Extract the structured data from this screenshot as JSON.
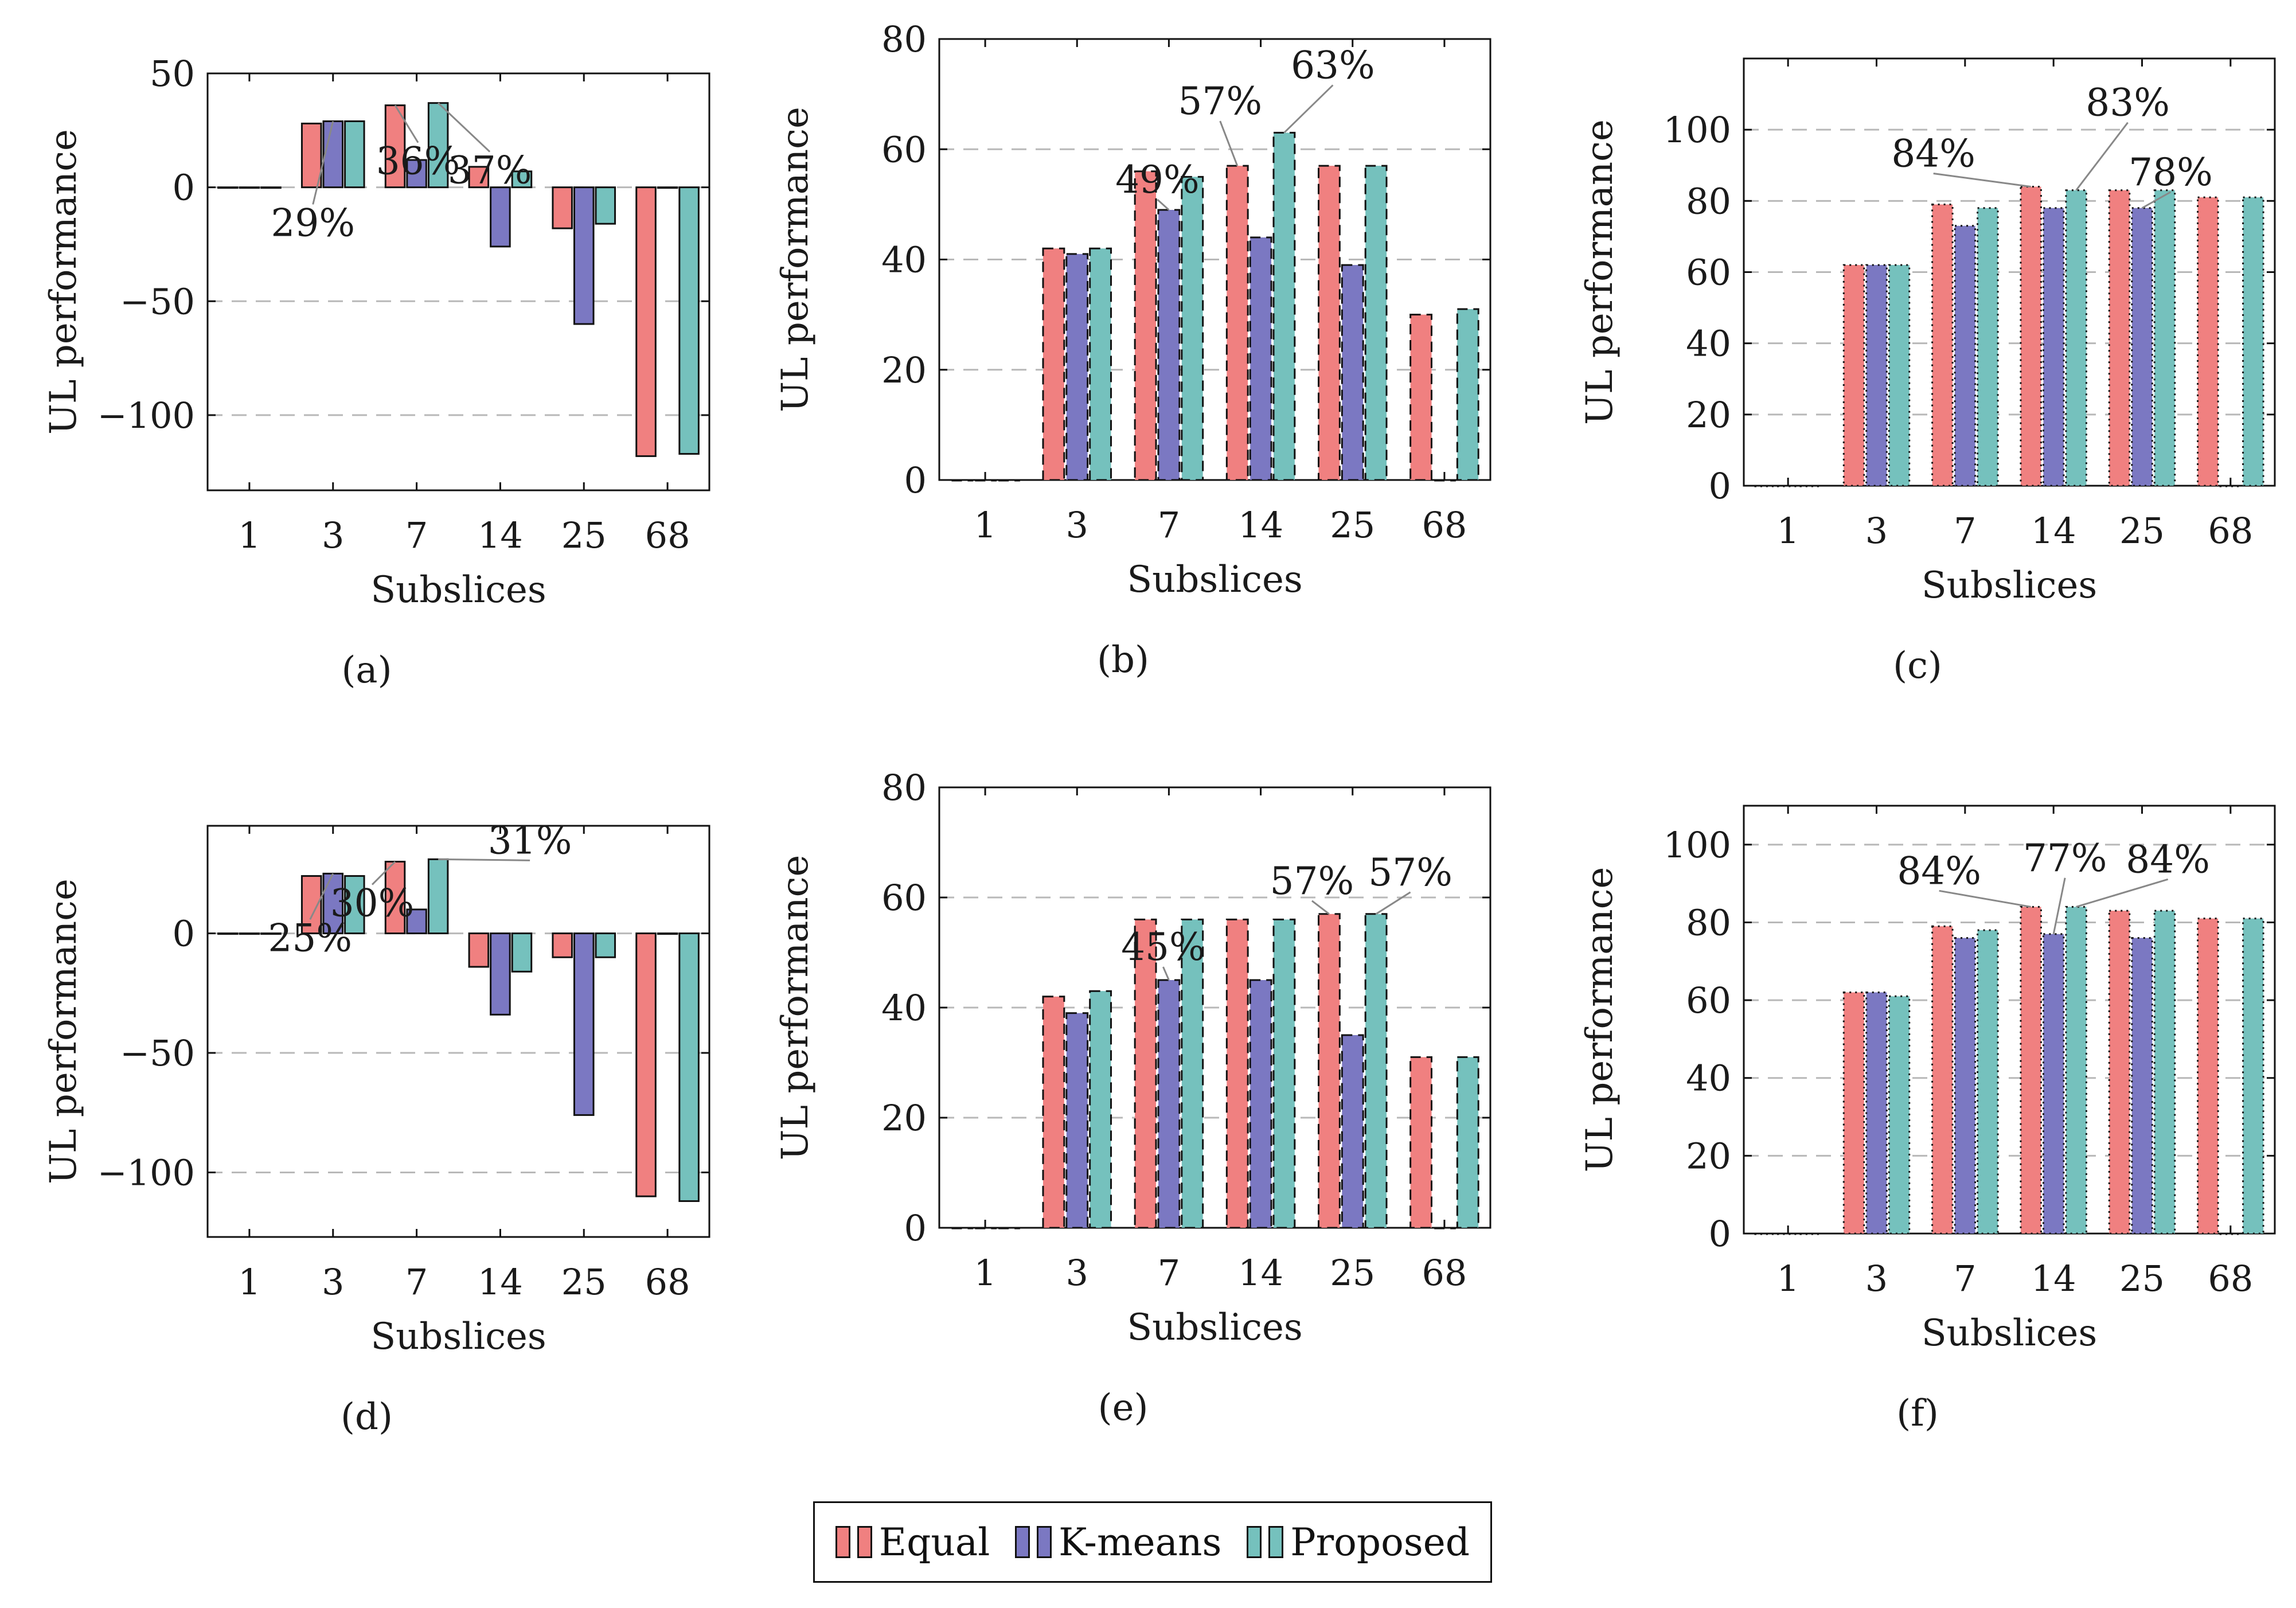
{
  "colors": {
    "equal": "#f08080",
    "kmeans": "#7b78c2",
    "proposed": "#75c1bd"
  },
  "legend": [
    {
      "key": "equal",
      "label": "Equal"
    },
    {
      "key": "kmeans",
      "label": "K-means"
    },
    {
      "key": "proposed",
      "label": "Proposed"
    }
  ],
  "chart_data": [
    {
      "id": "a",
      "caption": "(a)",
      "type": "bar",
      "title": "",
      "xlabel": "Subslices",
      "ylabel": "UL performance",
      "ylim": [
        -133,
        50
      ],
      "yticks": [
        50,
        0,
        -50,
        -100
      ],
      "categories": [
        "1",
        "3",
        "7",
        "14",
        "25",
        "68"
      ],
      "series": [
        {
          "name": "Equal",
          "values": [
            0,
            28,
            36,
            9,
            -18,
            -118
          ]
        },
        {
          "name": "K-means",
          "values": [
            0,
            29,
            12,
            -26,
            -60,
            0
          ]
        },
        {
          "name": "Proposed",
          "values": [
            0,
            29,
            37,
            7,
            -16,
            -117
          ]
        }
      ],
      "annotations": [
        {
          "text": "29%",
          "category": "3",
          "series": "K-means"
        },
        {
          "text": "36%",
          "category": "7",
          "series": "Equal"
        },
        {
          "text": "37%",
          "category": "7",
          "series": "Proposed"
        }
      ]
    },
    {
      "id": "b",
      "caption": "(b)",
      "type": "bar",
      "title": "",
      "xlabel": "Subslices",
      "ylabel": "UL performance",
      "ylim": [
        0,
        80
      ],
      "yticks": [
        0,
        20,
        40,
        60,
        80
      ],
      "categories": [
        "1",
        "3",
        "7",
        "14",
        "25",
        "68"
      ],
      "series": [
        {
          "name": "Equal",
          "values": [
            0,
            42,
            56,
            57,
            57,
            30
          ]
        },
        {
          "name": "K-means",
          "values": [
            0,
            41,
            49,
            44,
            39,
            0
          ]
        },
        {
          "name": "Proposed",
          "values": [
            0,
            42,
            55,
            63,
            57,
            31
          ]
        }
      ],
      "annotations": [
        {
          "text": "49%",
          "category": "7",
          "series": "K-means"
        },
        {
          "text": "57%",
          "category": "14",
          "series": "Equal"
        },
        {
          "text": "63%",
          "category": "14",
          "series": "Proposed"
        }
      ]
    },
    {
      "id": "c",
      "caption": "(c)",
      "type": "bar",
      "title": "",
      "xlabel": "Subslices",
      "ylabel": "UL performance",
      "ylim": [
        0,
        120
      ],
      "yticks": [
        0,
        20,
        40,
        60,
        80,
        100
      ],
      "categories": [
        "1",
        "3",
        "7",
        "14",
        "25",
        "68"
      ],
      "series": [
        {
          "name": "Equal",
          "values": [
            0,
            62,
            79,
            84,
            83,
            81
          ]
        },
        {
          "name": "K-means",
          "values": [
            0,
            62,
            73,
            78,
            78,
            0
          ]
        },
        {
          "name": "Proposed",
          "values": [
            0,
            62,
            78,
            83,
            83,
            81
          ]
        }
      ],
      "annotations": [
        {
          "text": "84%",
          "category": "14",
          "series": "Equal"
        },
        {
          "text": "83%",
          "category": "14",
          "series": "Proposed"
        },
        {
          "text": "78%",
          "category": "25",
          "series": "K-means"
        }
      ]
    },
    {
      "id": "d",
      "caption": "(d)",
      "type": "bar",
      "title": "",
      "xlabel": "Subslices",
      "ylabel": "UL performance",
      "ylim": [
        -127,
        45
      ],
      "yticks": [
        0,
        -50,
        -100
      ],
      "categories": [
        "1",
        "3",
        "7",
        "14",
        "25",
        "68"
      ],
      "series": [
        {
          "name": "Equal",
          "values": [
            0,
            24,
            30,
            -14,
            -10,
            -110
          ]
        },
        {
          "name": "K-means",
          "values": [
            0,
            25,
            10,
            -34,
            -76,
            0
          ]
        },
        {
          "name": "Proposed",
          "values": [
            0,
            24,
            31,
            -16,
            -10,
            -112
          ]
        }
      ],
      "annotations": [
        {
          "text": "25%",
          "category": "3",
          "series": "K-means"
        },
        {
          "text": "30%",
          "category": "7",
          "series": "Equal"
        },
        {
          "text": "31%",
          "category": "7",
          "series": "Proposed"
        }
      ]
    },
    {
      "id": "e",
      "caption": "(e)",
      "type": "bar",
      "title": "",
      "xlabel": "Subslices",
      "ylabel": "UL performance",
      "ylim": [
        0,
        80
      ],
      "yticks": [
        0,
        20,
        40,
        60,
        80
      ],
      "categories": [
        "1",
        "3",
        "7",
        "14",
        "25",
        "68"
      ],
      "series": [
        {
          "name": "Equal",
          "values": [
            0,
            42,
            56,
            56,
            57,
            31
          ]
        },
        {
          "name": "K-means",
          "values": [
            0,
            39,
            45,
            45,
            35,
            0
          ]
        },
        {
          "name": "Proposed",
          "values": [
            0,
            43,
            56,
            56,
            57,
            31
          ]
        }
      ],
      "annotations": [
        {
          "text": "45%",
          "category": "7",
          "series": "K-means"
        },
        {
          "text": "57%",
          "category": "25",
          "series": "Equal"
        },
        {
          "text": "57%",
          "category": "25",
          "series": "Proposed"
        }
      ]
    },
    {
      "id": "f",
      "caption": "(f)",
      "type": "bar",
      "title": "",
      "xlabel": "Subslices",
      "ylabel": "UL performance",
      "ylim": [
        0,
        110
      ],
      "yticks": [
        0,
        20,
        40,
        60,
        80,
        100
      ],
      "categories": [
        "1",
        "3",
        "7",
        "14",
        "25",
        "68"
      ],
      "series": [
        {
          "name": "Equal",
          "values": [
            0,
            62,
            79,
            84,
            83,
            81
          ]
        },
        {
          "name": "K-means",
          "values": [
            0,
            62,
            76,
            77,
            76,
            0
          ]
        },
        {
          "name": "Proposed",
          "values": [
            0,
            61,
            78,
            84,
            83,
            81
          ]
        }
      ],
      "annotations": [
        {
          "text": "84%",
          "category": "14",
          "series": "Equal"
        },
        {
          "text": "77%",
          "category": "14",
          "series": "K-means"
        },
        {
          "text": "84%",
          "category": "14",
          "series": "Proposed"
        }
      ]
    }
  ]
}
